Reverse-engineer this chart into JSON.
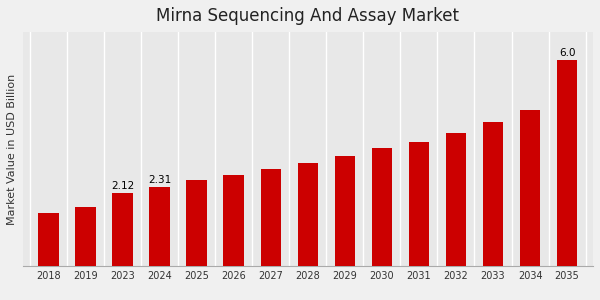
{
  "title": "Mirna Sequencing And Assay Market",
  "ylabel": "Market Value in USD Billion",
  "background_color": "#f0f0f0",
  "plot_bg_color": "#e8e8e8",
  "bar_color": "#cc0000",
  "bottom_bar_color": "#cc0000",
  "years": [
    "2018",
    "2019",
    "2023",
    "2024",
    "2025",
    "2026",
    "2027",
    "2028",
    "2029",
    "2030",
    "2031",
    "2032",
    "2033",
    "2034",
    "2035"
  ],
  "values": [
    1.55,
    1.72,
    2.12,
    2.31,
    2.5,
    2.65,
    2.82,
    3.0,
    3.2,
    3.42,
    3.62,
    3.88,
    4.18,
    4.55,
    6.0
  ],
  "labels": {
    "2023": "2.12",
    "2024": "2.31",
    "2035": "6.0"
  },
  "ylim": [
    0,
    6.8
  ],
  "title_fontsize": 12,
  "label_fontsize": 7.5,
  "tick_fontsize": 7,
  "ylabel_fontsize": 8,
  "bar_width": 0.55
}
